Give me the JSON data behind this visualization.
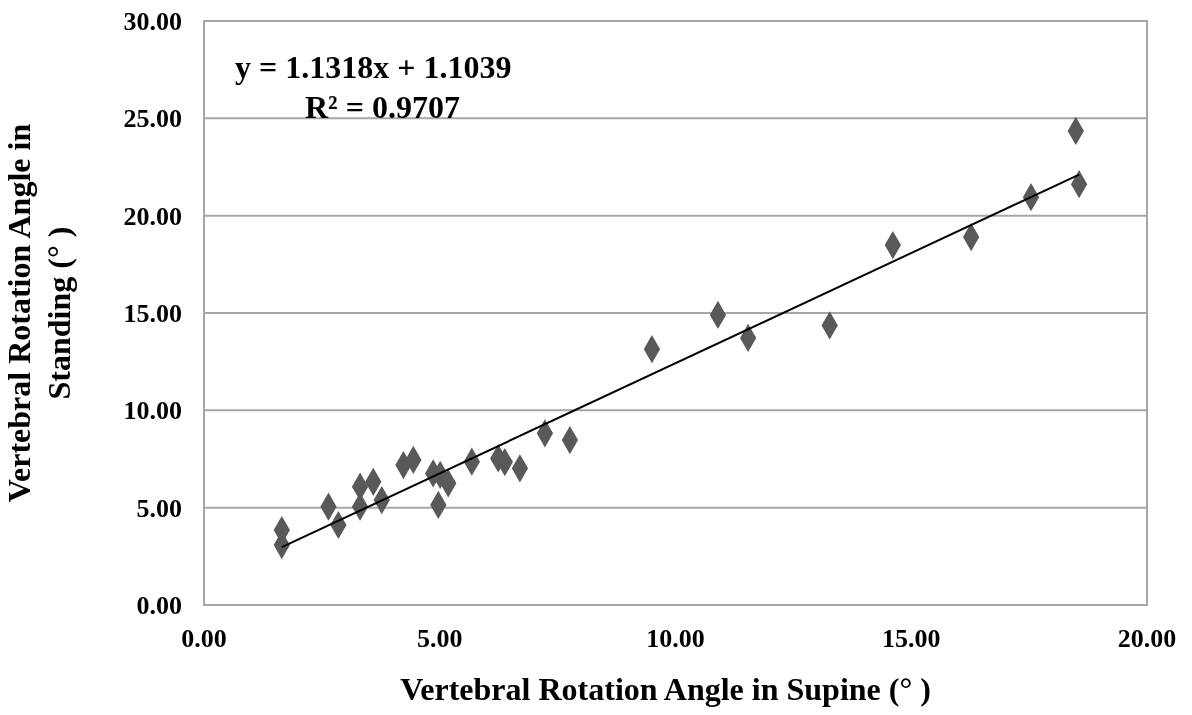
{
  "chart_data": {
    "type": "scatter",
    "xlabel": "Vertebral Rotation Angle in Supine (° )",
    "ylabel": "Vertebral Rotation Angle in Standing (° )",
    "annotations": [
      "y = 1.1318x + 1.1039",
      "R² = 0.9707"
    ],
    "xlim": [
      0,
      20
    ],
    "xticks": [
      {
        "value": 0,
        "label": "0.00"
      },
      {
        "value": 5,
        "label": "5.00"
      },
      {
        "value": 10,
        "label": "10.00"
      },
      {
        "value": 15,
        "label": "15.00"
      },
      {
        "value": 20,
        "label": "20.00"
      }
    ],
    "ylim": [
      0,
      30
    ],
    "yticks": [
      {
        "value": 0,
        "label": "0.00"
      },
      {
        "value": 5,
        "label": "5.00"
      },
      {
        "value": 10,
        "label": "10.00"
      },
      {
        "value": 15,
        "label": "15.00"
      },
      {
        "value": 20,
        "label": "20.00"
      },
      {
        "value": 25,
        "label": "25.00"
      },
      {
        "value": 30,
        "label": "30.00"
      }
    ],
    "grid": "y",
    "marker": "diamond",
    "series": [
      {
        "color": "#595959",
        "x": [
          1.65,
          1.65,
          2.64,
          2.85,
          3.31,
          3.31,
          3.59,
          3.77,
          4.23,
          4.44,
          4.86,
          5.01,
          5.18,
          4.97,
          5.68,
          6.24,
          6.38,
          6.7,
          7.23,
          7.76,
          9.5,
          10.9,
          11.54,
          13.27,
          14.61,
          16.27,
          17.54,
          18.49,
          18.56
        ],
        "values": [
          3.85,
          3.08,
          5.05,
          4.11,
          5.05,
          6.08,
          6.33,
          5.39,
          7.19,
          7.45,
          6.76,
          6.68,
          6.25,
          5.14,
          7.36,
          7.53,
          7.34,
          7.02,
          8.82,
          8.47,
          13.14,
          14.9,
          13.72,
          14.36,
          18.49,
          18.9,
          20.95,
          24.35,
          21.62
        ]
      },
      {
        "type": "line",
        "color": "#000000",
        "marker": "none",
        "x": [
          1.65,
          18.56
        ],
        "values": [
          2.97,
          22.11
        ]
      }
    ]
  }
}
